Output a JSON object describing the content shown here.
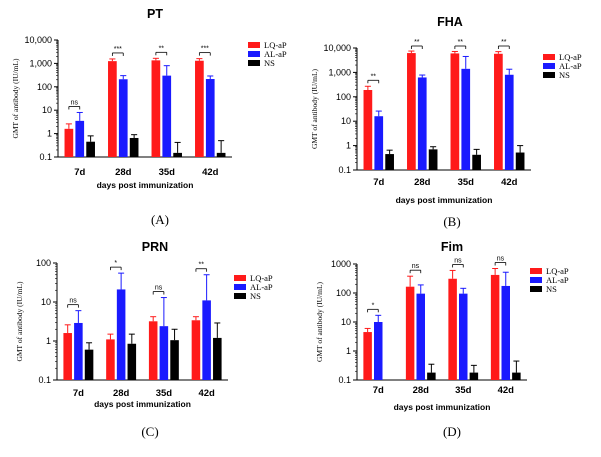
{
  "figure": {
    "series_colors": {
      "LQ-aP": "#ff1a1a",
      "AL-aP": "#1a1aff",
      "NS": "#000000"
    }
  },
  "chart_data": [
    {
      "type": "bar",
      "panel_label": "(A)",
      "title": "PT",
      "xlabel": "days post immunization",
      "ylabel": "GMT  of antibody (IU/mL)",
      "yscale": "log",
      "ylim": [
        0.1,
        10000
      ],
      "yticks": [
        "0.1",
        "1",
        "10",
        "100",
        "1,000",
        "10,000"
      ],
      "categories": [
        "7d",
        "28d",
        "35d",
        "42d"
      ],
      "series": [
        {
          "name": "LQ-aP",
          "values": [
            1.6,
            1250,
            1350,
            1300
          ],
          "err_upper": [
            2.6,
            1550,
            1650,
            1600
          ]
        },
        {
          "name": "AL-aP",
          "values": [
            3.5,
            210,
            300,
            215
          ],
          "err_upper": [
            8.0,
            300,
            800,
            290
          ]
        },
        {
          "name": "NS",
          "values": [
            0.45,
            0.65,
            0.15,
            0.15
          ],
          "err_upper": [
            0.8,
            0.9,
            0.42,
            0.5
          ]
        }
      ],
      "significance": [
        {
          "category": "7d",
          "label": "ns"
        },
        {
          "category": "28d",
          "label": "***"
        },
        {
          "category": "35d",
          "label": "**"
        },
        {
          "category": "42d",
          "label": "***"
        }
      ],
      "legend": [
        "LQ-aP",
        "AL-aP",
        "NS"
      ]
    },
    {
      "type": "bar",
      "panel_label": "(B)",
      "title": "FHA",
      "xlabel": "days post immunization",
      "ylabel": "GMT  of antibody (IU/mL)",
      "yscale": "log",
      "ylim": [
        0.1,
        10000
      ],
      "yticks": [
        "0.1",
        "1",
        "10",
        "100",
        "1,000",
        "10,000"
      ],
      "categories": [
        "7d",
        "28d",
        "35d",
        "42d"
      ],
      "series": [
        {
          "name": "LQ-aP",
          "values": [
            190,
            6200,
            6000,
            5800
          ],
          "err_upper": [
            270,
            7500,
            7200,
            7100
          ]
        },
        {
          "name": "AL-aP",
          "values": [
            16,
            620,
            1400,
            800
          ],
          "err_upper": [
            26,
            780,
            4500,
            1350
          ]
        },
        {
          "name": "NS",
          "values": [
            0.45,
            0.7,
            0.42,
            0.52
          ],
          "err_upper": [
            0.65,
            0.9,
            0.7,
            1.0
          ]
        }
      ],
      "significance": [
        {
          "category": "7d",
          "label": "**"
        },
        {
          "category": "28d",
          "label": "**"
        },
        {
          "category": "35d",
          "label": "**"
        },
        {
          "category": "42d",
          "label": "**"
        }
      ],
      "legend": [
        "LQ-aP",
        "AL-aP",
        "NS"
      ]
    },
    {
      "type": "bar",
      "panel_label": "(C)",
      "title": "PRN",
      "xlabel": "days post immunization",
      "ylabel": "GMT  of antibody (IU/mL)",
      "yscale": "log",
      "ylim": [
        0.1,
        100
      ],
      "yticks": [
        "0.1",
        "1",
        "10",
        "100"
      ],
      "categories": [
        "7d",
        "28d",
        "35d",
        "42d"
      ],
      "series": [
        {
          "name": "LQ-aP",
          "values": [
            1.6,
            1.1,
            3.2,
            3.4
          ],
          "err_upper": [
            2.6,
            1.5,
            4.2,
            4.2
          ]
        },
        {
          "name": "AL-aP",
          "values": [
            2.9,
            21,
            2.4,
            11
          ],
          "err_upper": [
            6.0,
            55,
            13,
            50
          ]
        },
        {
          "name": "NS",
          "values": [
            0.6,
            0.85,
            1.05,
            1.2
          ],
          "err_upper": [
            0.9,
            1.5,
            2.0,
            2.9
          ]
        }
      ],
      "significance": [
        {
          "category": "7d",
          "label": "ns"
        },
        {
          "category": "28d",
          "label": "*"
        },
        {
          "category": "35d",
          "label": "ns"
        },
        {
          "category": "42d",
          "label": "**"
        }
      ],
      "legend": [
        "LQ-aP",
        "AL-aP",
        "NS"
      ]
    },
    {
      "type": "bar",
      "panel_label": "(D)",
      "title": "Fim",
      "xlabel": "days post immunization",
      "ylabel": "GMT  of antibody (IU/mL)",
      "yscale": "log",
      "ylim": [
        0.1,
        1000
      ],
      "yticks": [
        "0.1",
        "1",
        "10",
        "100",
        "1000"
      ],
      "categories": [
        "7d",
        "28d",
        "35d",
        "42d"
      ],
      "series": [
        {
          "name": "LQ-aP",
          "values": [
            4.5,
            165,
            310,
            420
          ],
          "err_upper": [
            6.0,
            380,
            600,
            700
          ]
        },
        {
          "name": "AL-aP",
          "values": [
            10,
            95,
            95,
            175
          ],
          "err_upper": [
            17,
            190,
            145,
            520
          ]
        },
        {
          "name": "NS",
          "values": [
            null,
            0.18,
            0.18,
            0.18
          ],
          "err_upper": [
            null,
            0.35,
            0.32,
            0.45
          ]
        }
      ],
      "significance": [
        {
          "category": "7d",
          "label": "*"
        },
        {
          "category": "28d",
          "label": "ns"
        },
        {
          "category": "35d",
          "label": "ns"
        },
        {
          "category": "42d",
          "label": "ns"
        }
      ],
      "legend": [
        "LQ-aP",
        "AL-aP",
        "NS"
      ]
    }
  ]
}
